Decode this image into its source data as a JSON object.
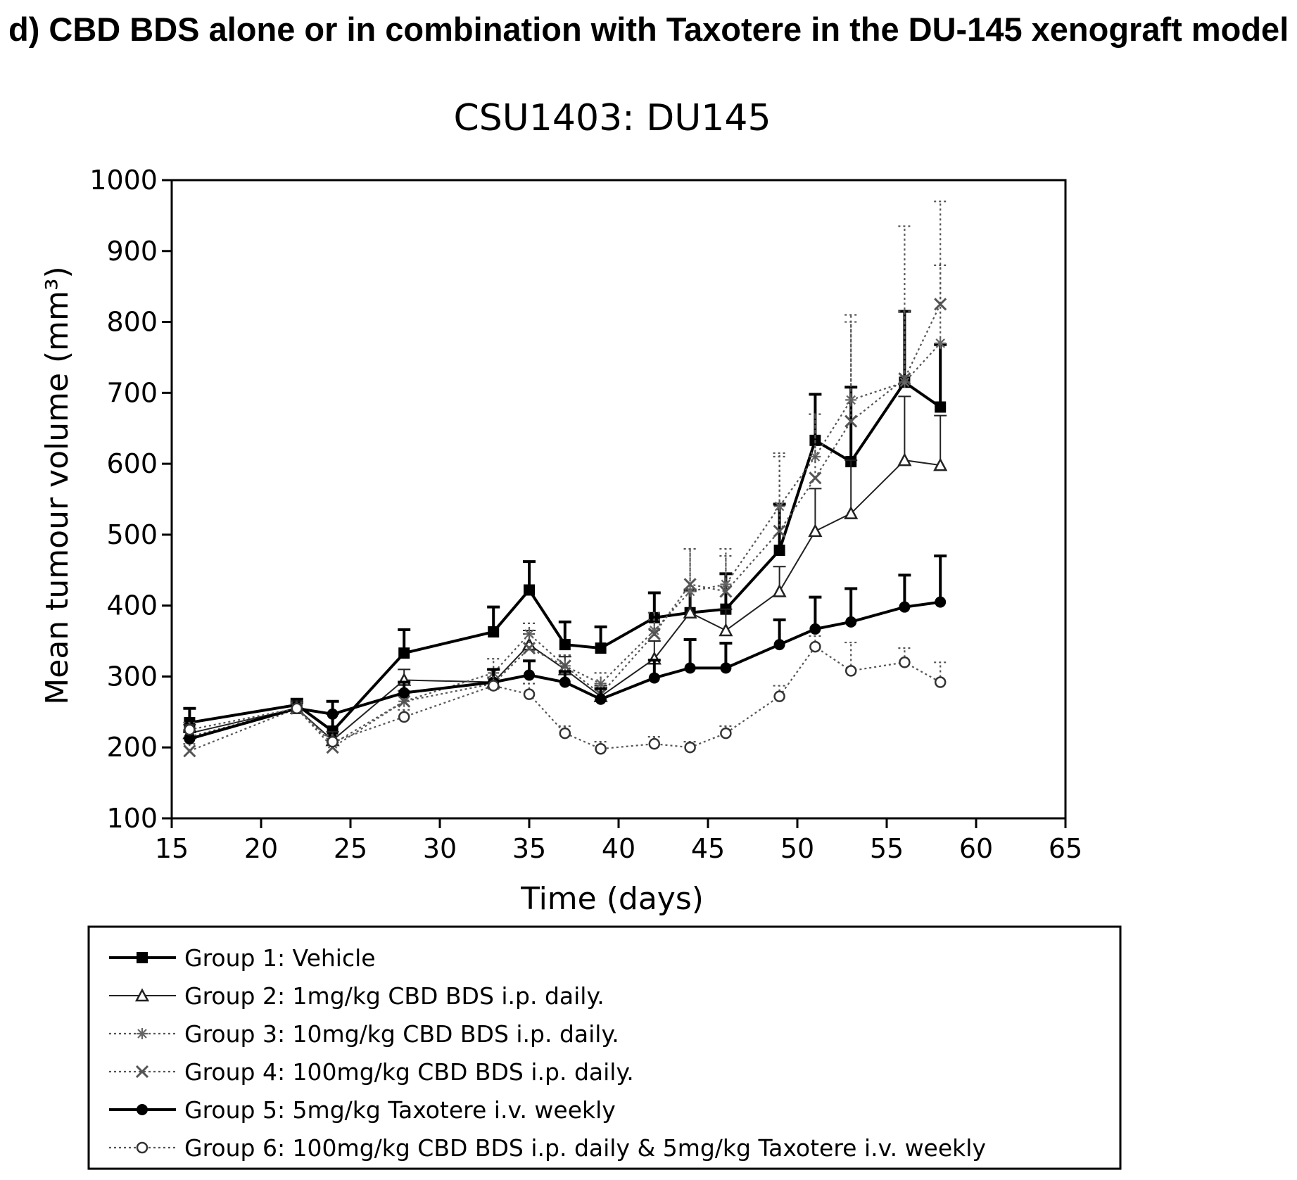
{
  "heading": "d) CBD BDS alone or in combination with Taxotere in the DU-145 xenograft model",
  "chart_data": {
    "type": "line",
    "title": "CSU1403: DU145",
    "xlabel": "Time (days)",
    "ylabel": "Mean tumour volume (mm³)",
    "xlim": [
      15,
      65
    ],
    "ylim": [
      100,
      1000
    ],
    "xticks": [
      "15",
      "20",
      "25",
      "30",
      "35",
      "40",
      "45",
      "50",
      "55",
      "60",
      "65"
    ],
    "yticks": [
      "100",
      "200",
      "300",
      "400",
      "500",
      "600",
      "700",
      "800",
      "900",
      "1000"
    ],
    "grid": false,
    "legend_position": "bottom",
    "series": [
      {
        "name": "Group 1: Vehicle",
        "style": "solid-thick",
        "marker": "filled-square",
        "x": [
          16,
          22,
          24,
          28,
          33,
          35,
          37,
          39,
          42,
          44,
          46,
          49,
          51,
          53,
          56,
          58
        ],
        "y": [
          235,
          260,
          223,
          333,
          363,
          422,
          345,
          340,
          383,
          390,
          395,
          478,
          633,
          603,
          715,
          680
        ],
        "err": [
          20,
          8,
          25,
          33,
          35,
          40,
          32,
          30,
          35,
          32,
          50,
          65,
          65,
          105,
          100,
          88
        ]
      },
      {
        "name": "Group 2: 1mg/kg CBD BDS i.p. daily.",
        "style": "solid-thin",
        "marker": "open-triangle",
        "x": [
          16,
          22,
          24,
          28,
          33,
          35,
          37,
          39,
          42,
          44,
          46,
          49,
          51,
          53,
          56,
          58
        ],
        "y": [
          220,
          255,
          210,
          295,
          292,
          345,
          310,
          272,
          325,
          390,
          365,
          420,
          505,
          530,
          605,
          598
        ],
        "err": [
          12,
          10,
          12,
          15,
          18,
          20,
          18,
          15,
          25,
          30,
          30,
          35,
          60,
          75,
          90,
          70
        ]
      },
      {
        "name": "Group 3: 10mg/kg CBD BDS i.p. daily.",
        "style": "dotted",
        "marker": "star",
        "x": [
          16,
          22,
          24,
          28,
          33,
          35,
          37,
          39,
          42,
          44,
          46,
          49,
          51,
          53,
          56,
          58
        ],
        "y": [
          215,
          255,
          205,
          265,
          305,
          360,
          315,
          290,
          365,
          420,
          430,
          540,
          610,
          690,
          715,
          770
        ],
        "err": [
          10,
          8,
          12,
          15,
          20,
          15,
          15,
          15,
          25,
          60,
          50,
          70,
          60,
          110,
          100,
          110
        ]
      },
      {
        "name": "Group 4: 100mg/kg CBD BDS i.p. daily.",
        "style": "dotted",
        "marker": "x",
        "x": [
          16,
          22,
          24,
          28,
          33,
          35,
          37,
          39,
          42,
          44,
          46,
          49,
          51,
          53,
          56,
          58
        ],
        "y": [
          195,
          255,
          200,
          265,
          290,
          340,
          315,
          275,
          360,
          430,
          420,
          505,
          580,
          660,
          720,
          825
        ],
        "err": [
          10,
          10,
          10,
          15,
          20,
          20,
          15,
          15,
          20,
          50,
          50,
          110,
          90,
          150,
          215,
          145
        ]
      },
      {
        "name": "Group 5: 5mg/kg Taxotere i.v. weekly",
        "style": "solid-thick",
        "marker": "filled-circle",
        "x": [
          16,
          22,
          24,
          28,
          33,
          35,
          37,
          39,
          42,
          44,
          46,
          49,
          51,
          53,
          56,
          58
        ],
        "y": [
          212,
          255,
          247,
          277,
          292,
          302,
          292,
          268,
          298,
          312,
          312,
          345,
          367,
          377,
          398,
          405
        ],
        "err": [
          10,
          8,
          18,
          15,
          18,
          20,
          15,
          15,
          25,
          40,
          35,
          35,
          45,
          47,
          45,
          65
        ]
      },
      {
        "name": "Group 6: 100mg/kg CBD BDS i.p. daily & 5mg/kg Taxotere i.v. weekly",
        "style": "dotted",
        "marker": "open-circle",
        "x": [
          16,
          22,
          24,
          28,
          33,
          35,
          37,
          39,
          42,
          44,
          46,
          49,
          51,
          53,
          56,
          58
        ],
        "y": [
          225,
          255,
          208,
          243,
          287,
          275,
          220,
          198,
          205,
          200,
          220,
          272,
          342,
          308,
          320,
          292
        ],
        "err": [
          10,
          8,
          10,
          10,
          12,
          15,
          10,
          10,
          10,
          8,
          10,
          15,
          15,
          40,
          20,
          28
        ]
      }
    ]
  }
}
